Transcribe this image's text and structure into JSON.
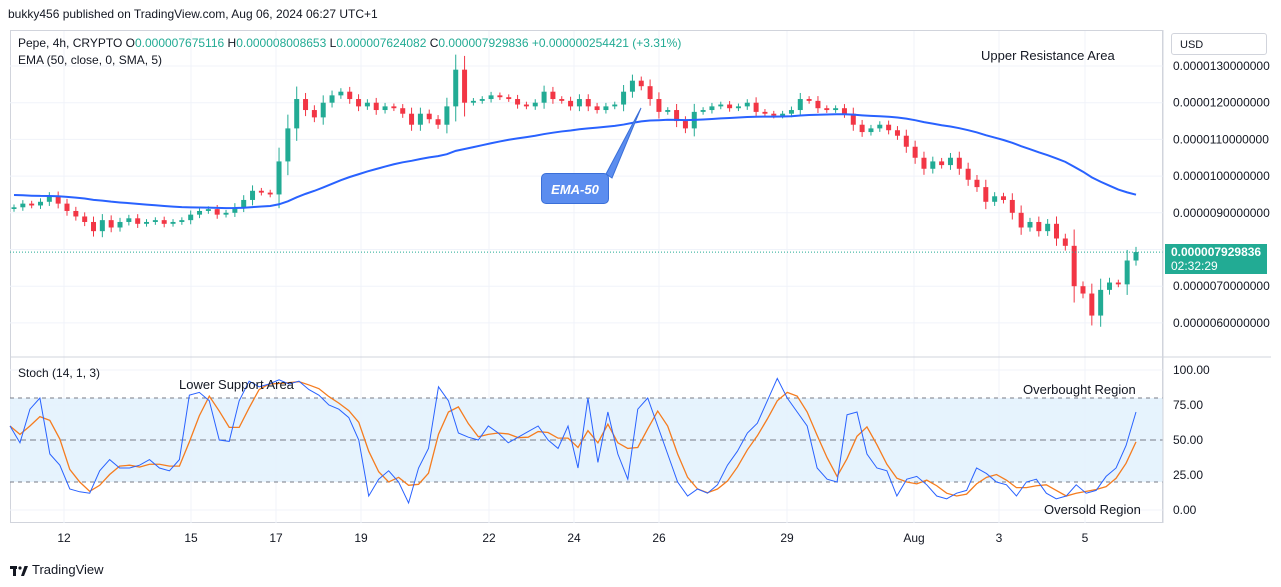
{
  "header": {
    "published": "bukky456 published on TradingView.com, Aug 06, 2024 06:27 UTC+1"
  },
  "legend": {
    "symbol": "Pepe, 4h, CRYPTO",
    "o_label": "O",
    "o": "0.000007675116",
    "h_label": "H",
    "h": "0.000008008653",
    "l_label": "L",
    "l": "0.000007624082",
    "c_label": "C",
    "c": "0.000007929836",
    "change": "+0.000000254421 (+3.31%)",
    "ema": "EMA (50, close, 0, SMA, 5)",
    "stoch": "Stoch (14, 1, 3)"
  },
  "price_axis": {
    "currency": "USD",
    "ticks": [
      "0.0000130000000",
      "0.0000120000000",
      "0.0000110000000",
      "0.0000100000000",
      "0.0000090000000",
      "0.0000070000000",
      "0.0000060000000"
    ],
    "last_price": "0.000007929836",
    "countdown": "02:32:29"
  },
  "stoch_axis": {
    "ticks": [
      "100.00",
      "75.00",
      "50.00",
      "25.00",
      "0.00"
    ]
  },
  "time_axis": {
    "ticks": [
      "12",
      "15",
      "17",
      "19",
      "22",
      "24",
      "26",
      "29",
      "Aug",
      "3",
      "5"
    ]
  },
  "annotations": {
    "upper_resistance": "Upper Resistance Area",
    "ema_callout": "EMA-50",
    "lower_support": "Lower Support Area",
    "overbought": "Overbought Region",
    "oversold": "Oversold Region"
  },
  "footer": {
    "brand": "TradingView"
  },
  "colors": {
    "up": "#22ab94",
    "down": "#f23645",
    "ema": "#2962ff",
    "stoch_k": "#2962ff",
    "stoch_d": "#f57c1f",
    "stoch_band": "#e3f2fd"
  },
  "chart_data": [
    {
      "type": "candlestick",
      "interval": "4h",
      "ylim": [
        5.7e-06,
        1.35e-05
      ],
      "candle_closes": [
        9.15e-06,
        9.25e-06,
        9.2e-06,
        9.3e-06,
        9.45e-06,
        9.25e-06,
        9.05e-06,
        8.9e-06,
        8.75e-06,
        8.5e-06,
        8.8e-06,
        8.6e-06,
        8.75e-06,
        8.85e-06,
        8.7e-06,
        8.75e-06,
        8.8e-06,
        8.7e-06,
        8.75e-06,
        8.8e-06,
        8.95e-06,
        9.05e-06,
        9.1e-06,
        8.95e-06,
        9e-06,
        9.15e-06,
        9.35e-06,
        9.6e-06,
        9.55e-06,
        9.5e-06,
        1.04e-05,
        1.13e-05,
        1.21e-05,
        1.18e-05,
        1.16e-05,
        1.2e-05,
        1.22e-05,
        1.23e-05,
        1.21e-05,
        1.19e-05,
        1.2e-05,
        1.18e-05,
        1.19e-05,
        1.185e-05,
        1.17e-05,
        1.14e-05,
        1.17e-05,
        1.155e-05,
        1.14e-05,
        1.19e-05,
        1.29e-05,
        1.2e-05,
        1.205e-05,
        1.21e-05,
        1.22e-05,
        1.215e-05,
        1.21e-05,
        1.195e-05,
        1.19e-05,
        1.2e-05,
        1.23e-05,
        1.21e-05,
        1.205e-05,
        1.19e-05,
        1.21e-05,
        1.19e-05,
        1.18e-05,
        1.19e-05,
        1.195e-05,
        1.23e-05,
        1.26e-05,
        1.245e-05,
        1.21e-05,
        1.175e-05,
        1.18e-05,
        1.15e-05,
        1.13e-05,
        1.175e-05,
        1.18e-05,
        1.19e-05,
        1.195e-05,
        1.185e-05,
        1.19e-05,
        1.2e-05,
        1.175e-05,
        1.17e-05,
        1.165e-05,
        1.17e-05,
        1.18e-05,
        1.21e-05,
        1.205e-05,
        1.185e-05,
        1.18e-05,
        1.185e-05,
        1.17e-05,
        1.14e-05,
        1.12e-05,
        1.13e-05,
        1.14e-05,
        1.125e-05,
        1.11e-05,
        1.08e-05,
        1.05e-05,
        1.02e-05,
        1.04e-05,
        1.03e-05,
        1.05e-05,
        1.02e-05,
        9.9e-06,
        9.7e-06,
        9.3e-06,
        9.45e-06,
        9.35e-06,
        9e-06,
        8.6e-06,
        8.75e-06,
        8.5e-06,
        8.7e-06,
        8.3e-06,
        8.1e-06,
        7e-06,
        6.8e-06,
        6.2e-06,
        6.9e-06,
        7.1e-06,
        7.05e-06,
        7.7e-06,
        7.93e-06
      ],
      "ema50_start": 9.5e-06,
      "ema50_end": 9.35e-06,
      "last_price": 7.929836e-06
    },
    {
      "type": "line",
      "name": "Stoch (14, 1, 3)",
      "ylim": [
        0,
        100
      ],
      "overbought": 80,
      "oversold": 20,
      "k": [
        60,
        48,
        72,
        80,
        40,
        32,
        15,
        13,
        12,
        28,
        36,
        30,
        30,
        32,
        36,
        30,
        28,
        36,
        82,
        84,
        78,
        50,
        49,
        78,
        92,
        88,
        90,
        93,
        90,
        92,
        86,
        82,
        75,
        72,
        66,
        50,
        10,
        22,
        28,
        20,
        5,
        30,
        44,
        88,
        78,
        55,
        52,
        50,
        60,
        55,
        48,
        52,
        56,
        60,
        50,
        44,
        60,
        30,
        80,
        34,
        70,
        40,
        22,
        72,
        80,
        60,
        40,
        20,
        10,
        15,
        12,
        18,
        32,
        42,
        55,
        62,
        78,
        94,
        80,
        70,
        60,
        30,
        22,
        20,
        68,
        70,
        40,
        30,
        28,
        10,
        22,
        24,
        18,
        10,
        8,
        12,
        14,
        30,
        26,
        20,
        18,
        10,
        20,
        22,
        12,
        8,
        10,
        18,
        12,
        14,
        24,
        30,
        46,
        70
      ]
    }
  ]
}
